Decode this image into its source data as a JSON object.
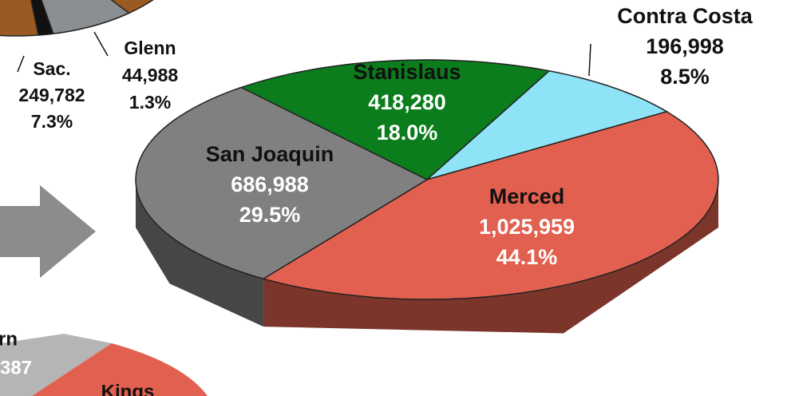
{
  "chart_data": [
    {
      "type": "pie",
      "categories": [
        "Stanislaus",
        "Contra Costa",
        "Merced",
        "San Joaquin"
      ],
      "values": [
        18.0,
        8.5,
        44.1,
        29.5
      ],
      "value_labels": [
        "18.0%",
        "8.5%",
        "44.1%",
        "29.5%"
      ],
      "counts": [
        418280,
        196998,
        1025959,
        686988
      ],
      "count_labels": [
        "418,280",
        "196,998",
        "1,025,959",
        "686,988"
      ],
      "colors": [
        "#0b7d1c",
        "#8fe3f7",
        "#e2604f",
        "#808080"
      ]
    },
    {
      "type": "pie",
      "categories": [
        "Sac.",
        "Glenn"
      ],
      "values": [
        7.3,
        1.3
      ],
      "value_labels": [
        "7.3%",
        "1.3%"
      ],
      "counts": [
        249782,
        44988
      ],
      "count_labels": [
        "249,782",
        "44,988"
      ],
      "colors": [
        "#8a8f93",
        "#111111"
      ]
    },
    {
      "type": "pie",
      "annotations": [
        "rn",
        "387",
        "Kings"
      ]
    }
  ]
}
